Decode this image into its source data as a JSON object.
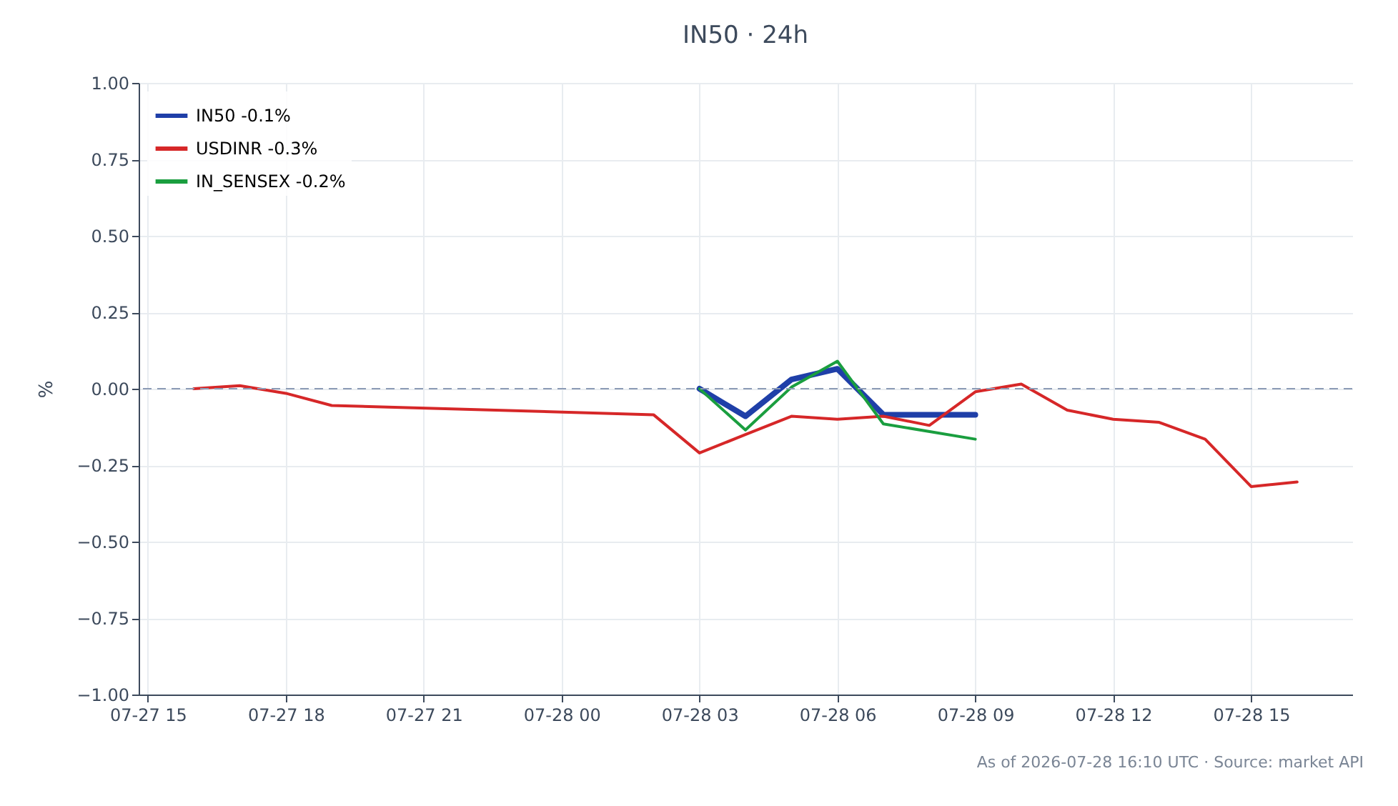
{
  "chart_data": {
    "type": "line",
    "title": "IN50 · 24h",
    "ylabel": "%",
    "annotations": [
      "As of 2026-07-28 16:10 UTC · Source: market API"
    ],
    "xlim": [
      "2026-07-27T14:48",
      "2026-07-28T17:12"
    ],
    "xticks": [
      {
        "value": "2026-07-27T15:00",
        "label": "07-27 15"
      },
      {
        "value": "2026-07-27T18:00",
        "label": "07-27 18"
      },
      {
        "value": "2026-07-27T21:00",
        "label": "07-27 21"
      },
      {
        "value": "2026-07-28T00:00",
        "label": "07-28 00"
      },
      {
        "value": "2026-07-28T03:00",
        "label": "07-28 03"
      },
      {
        "value": "2026-07-28T06:00",
        "label": "07-28 06"
      },
      {
        "value": "2026-07-28T09:00",
        "label": "07-28 09"
      },
      {
        "value": "2026-07-28T12:00",
        "label": "07-28 12"
      },
      {
        "value": "2026-07-28T15:00",
        "label": "07-28 15"
      }
    ],
    "ylim": [
      -1,
      1
    ],
    "yticks": [
      {
        "value": -1,
        "label": "−1.00"
      },
      {
        "value": -0.75,
        "label": "−0.75"
      },
      {
        "value": -0.5,
        "label": "−0.50"
      },
      {
        "value": -0.25,
        "label": "−0.25"
      },
      {
        "value": 0,
        "label": "0.00"
      },
      {
        "value": 0.25,
        "label": "0.25"
      },
      {
        "value": 0.5,
        "label": "0.50"
      },
      {
        "value": 0.75,
        "label": "0.75"
      },
      {
        "value": 1,
        "label": "1.00"
      }
    ],
    "grid": true,
    "legend": "top left",
    "marker": "none",
    "line_style": "solid",
    "ref_lines": [
      {
        "axis": "y",
        "value": 0,
        "color": "#8c9bb5",
        "line_style": "dashed"
      }
    ],
    "series": [
      {
        "name": "IN50 -0.1%",
        "color": "#1f3fa8",
        "x": [
          "2026-07-28T03:00",
          "2026-07-28T04:00",
          "2026-07-28T05:00",
          "2026-07-28T06:00",
          "2026-07-28T07:00",
          "2026-07-28T08:00",
          "2026-07-28T09:00"
        ],
        "values": [
          0.0,
          -0.09,
          0.03,
          0.065,
          -0.085,
          -0.085,
          -0.085
        ]
      },
      {
        "name": "USDINR -0.3%",
        "color": "#d62728",
        "x": [
          "2026-07-27T16:00",
          "2026-07-27T17:00",
          "2026-07-27T18:00",
          "2026-07-27T19:00",
          "2026-07-28T02:00",
          "2026-07-28T03:00",
          "2026-07-28T04:00",
          "2026-07-28T05:00",
          "2026-07-28T06:00",
          "2026-07-28T07:00",
          "2026-07-28T08:00",
          "2026-07-28T09:00",
          "2026-07-28T10:00",
          "2026-07-28T11:00",
          "2026-07-28T12:00",
          "2026-07-28T13:00",
          "2026-07-28T14:00",
          "2026-07-28T15:00",
          "2026-07-28T16:00"
        ],
        "values": [
          0.0,
          0.01,
          -0.015,
          -0.055,
          -0.085,
          -0.21,
          -0.15,
          -0.09,
          -0.1,
          -0.09,
          -0.12,
          -0.01,
          0.015,
          -0.07,
          -0.1,
          -0.11,
          -0.165,
          -0.32,
          -0.305
        ]
      },
      {
        "name": "IN_SENSEX -0.2%",
        "color": "#1a9e3f",
        "x": [
          "2026-07-28T03:00",
          "2026-07-28T04:00",
          "2026-07-28T05:00",
          "2026-07-28T06:00",
          "2026-07-28T07:00",
          "2026-07-28T09:00"
        ],
        "values": [
          0.0,
          -0.135,
          0.005,
          0.09,
          -0.115,
          -0.165
        ]
      }
    ]
  }
}
